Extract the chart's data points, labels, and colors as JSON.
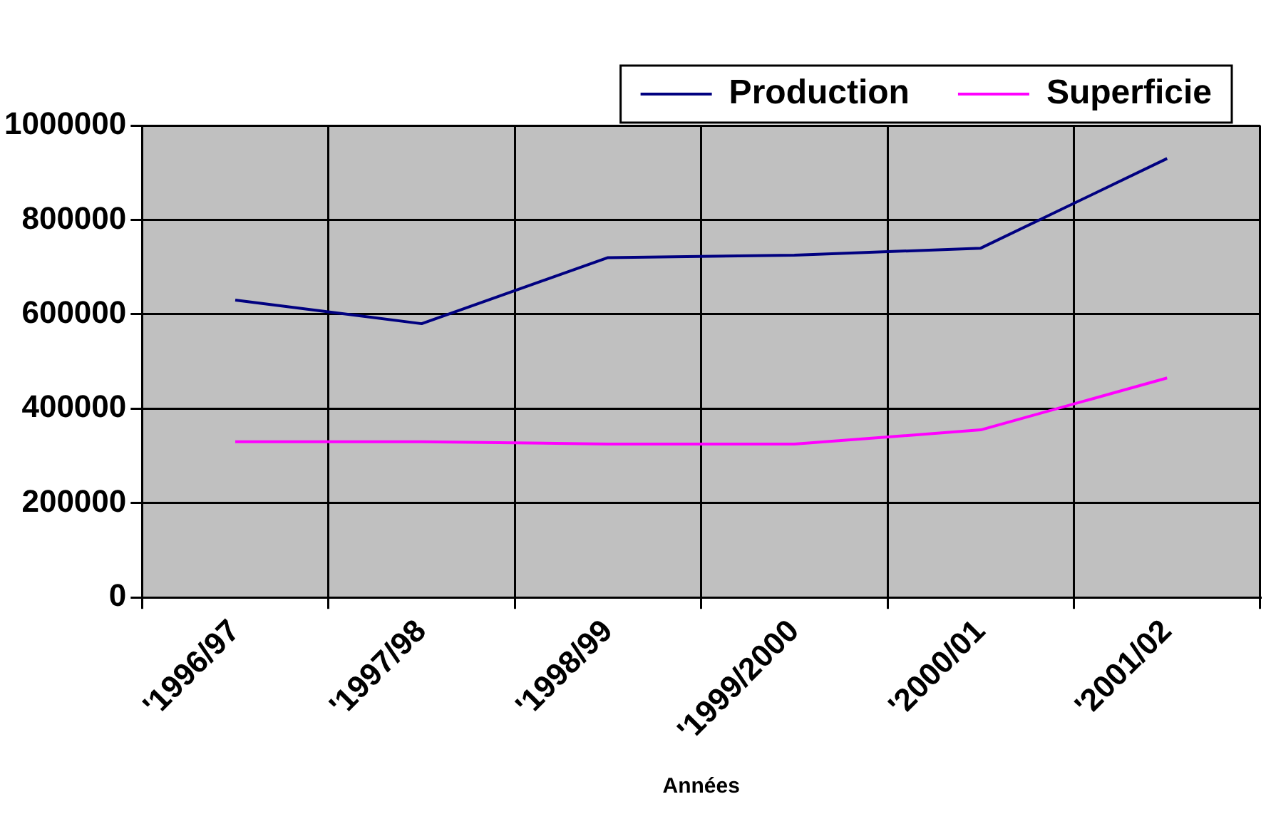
{
  "chart_data": {
    "type": "line",
    "xlabel": "Années",
    "categories": [
      "'1996/97",
      "'1997/98",
      "'1998/99",
      "'1999/2000",
      "'2000/01",
      "'2001/02"
    ],
    "series": [
      {
        "name": "Production",
        "color": "#000080",
        "values": [
          630000,
          580000,
          720000,
          725000,
          740000,
          930000
        ]
      },
      {
        "name": "Superficie",
        "color": "#ff00ff",
        "values": [
          330000,
          330000,
          325000,
          325000,
          355000,
          465000
        ]
      }
    ],
    "ylim": [
      0,
      1000000
    ],
    "yticks": [
      0,
      200000,
      400000,
      600000,
      800000,
      1000000
    ],
    "grid": true,
    "legend": "top",
    "marker": "none",
    "line_style": "solid"
  }
}
